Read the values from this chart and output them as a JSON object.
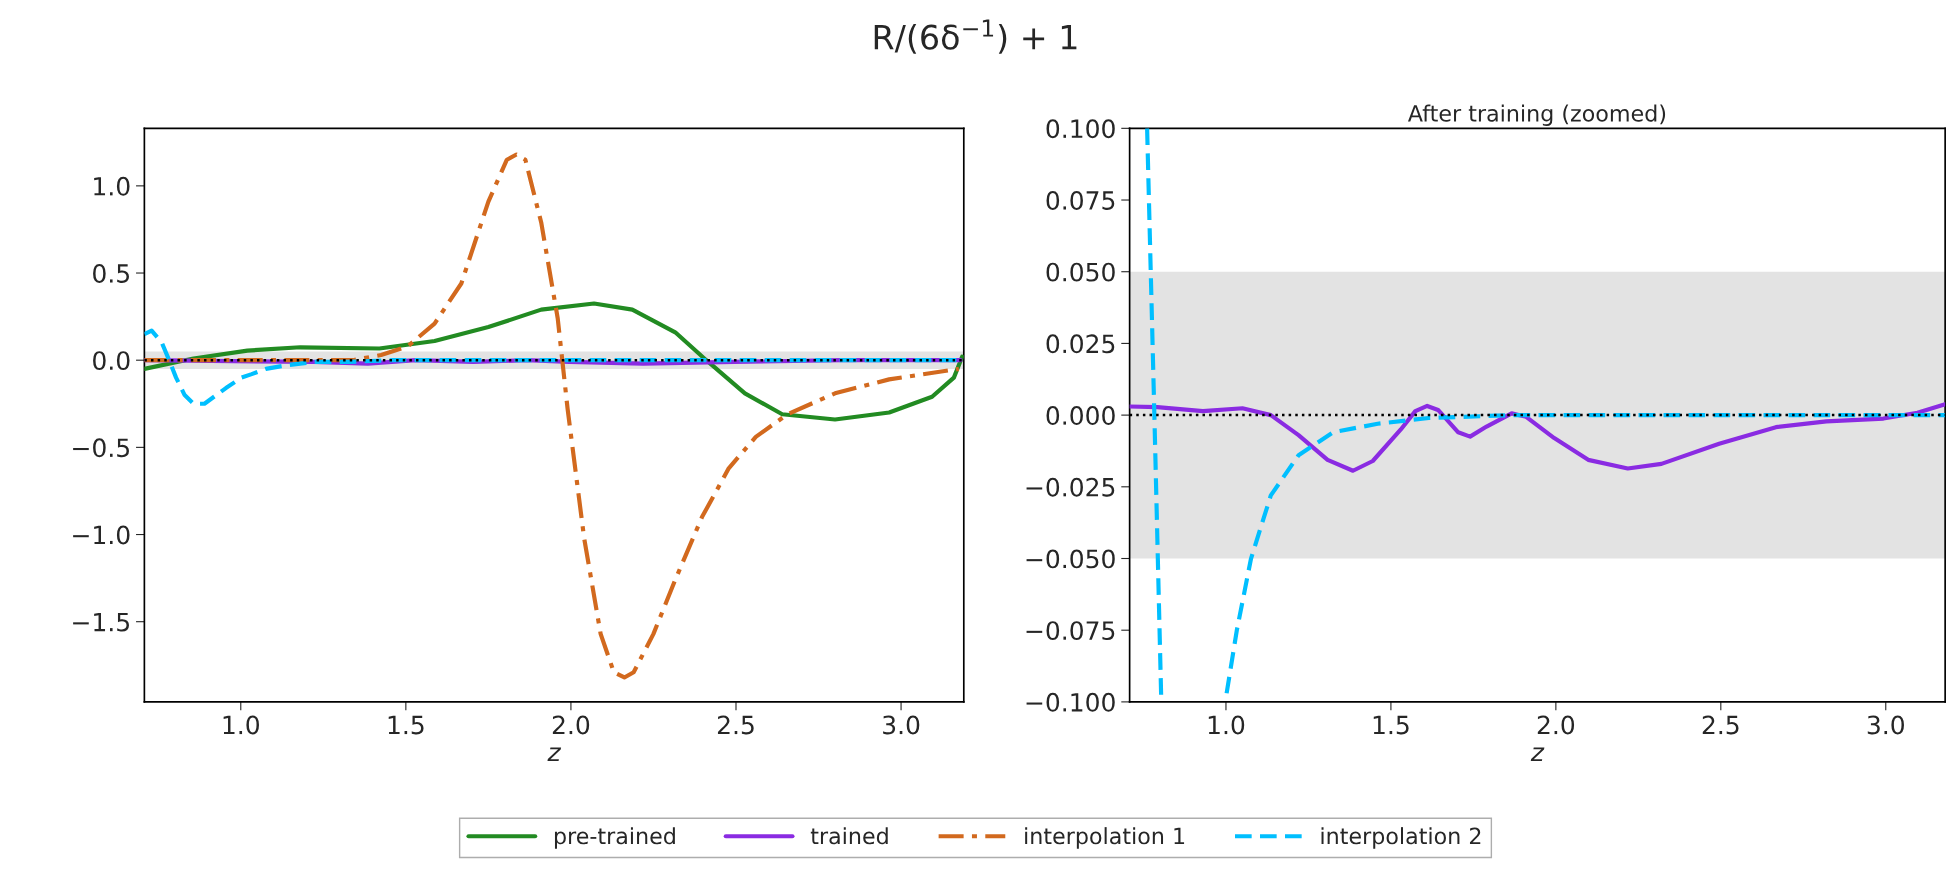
{
  "chart_data": [
    {
      "type": "line",
      "title": "R/(6δ$^{−1}$) + 1",
      "xlabel": "z",
      "xlim": [
        0.708,
        3.19
      ],
      "ylim": [
        -1.96,
        1.33
      ],
      "xticks": [
        {
          "value": 1.0,
          "label": "1.0"
        },
        {
          "value": 1.5,
          "label": "1.5"
        },
        {
          "value": 2.0,
          "label": "2.0"
        },
        {
          "value": 2.5,
          "label": "2.5"
        },
        {
          "value": 3.0,
          "label": "3.0"
        }
      ],
      "yticks": [
        {
          "value": -1.5,
          "label": "−1.5"
        },
        {
          "value": -1.0,
          "label": "−1.0"
        },
        {
          "value": -0.5,
          "label": "−0.5"
        },
        {
          "value": 0.0,
          "label": "0.0"
        },
        {
          "value": 0.5,
          "label": "0.5"
        },
        {
          "value": 1.0,
          "label": "1.0"
        }
      ],
      "grid": false,
      "legend": "bottom",
      "ref_lines": [
        {
          "axis": "y",
          "value": 0,
          "color": "#000000",
          "line_style": "dotted"
        }
      ],
      "bands": [
        {
          "axis": "y",
          "from": -0.05,
          "to": 0.05,
          "color": "#e3e3e3"
        }
      ],
      "series": [
        {
          "name": "pre-trained",
          "color": "#228b22",
          "line_style": "solid",
          "x": [
            0.708,
            0.857,
            1.02,
            1.18,
            1.42,
            1.587,
            1.75,
            1.91,
            2.07,
            2.186,
            2.316,
            2.41,
            2.527,
            2.64,
            2.8,
            2.964,
            3.094,
            3.16,
            3.185
          ],
          "values": [
            -0.05,
            0.01,
            0.055,
            0.074,
            0.067,
            0.11,
            0.19,
            0.29,
            0.325,
            0.29,
            0.16,
            0.0,
            -0.19,
            -0.31,
            -0.34,
            -0.3,
            -0.21,
            -0.1,
            0.02
          ]
        },
        {
          "name": "trained",
          "color": "#8a2be2",
          "line_style": "solid",
          "x": [
            0.708,
            1.22,
            1.385,
            1.53,
            1.704,
            1.866,
            1.995,
            2.218,
            2.495,
            2.82,
            3.18
          ],
          "values": [
            0.0,
            -0.01,
            -0.02,
            0.0,
            -0.01,
            0.0,
            -0.01,
            -0.02,
            -0.01,
            0.0,
            0.0
          ]
        },
        {
          "name": "interpolation 1",
          "color": "#d2691e",
          "line_style": "dashdot",
          "x": [
            0.708,
            1.34,
            1.425,
            1.506,
            1.587,
            1.668,
            1.75,
            1.806,
            1.835,
            1.862,
            1.91,
            1.96,
            1.99,
            2.04,
            2.09,
            2.13,
            2.162,
            2.19,
            2.25,
            2.316,
            2.397,
            2.478,
            2.56,
            2.656,
            2.8,
            2.964,
            3.175
          ],
          "values": [
            0.0,
            0.0,
            0.03,
            0.08,
            0.21,
            0.44,
            0.91,
            1.15,
            1.18,
            1.15,
            0.79,
            0.24,
            -0.28,
            -1.02,
            -1.57,
            -1.79,
            -1.82,
            -1.79,
            -1.57,
            -1.26,
            -0.9,
            -0.62,
            -0.44,
            -0.31,
            -0.19,
            -0.11,
            -0.05
          ]
        },
        {
          "name": "interpolation 2",
          "color": "#00bfff",
          "line_style": "dashed",
          "x": [
            0.708,
            0.73,
            0.761,
            0.783,
            0.804,
            0.83,
            0.857,
            0.89,
            0.955,
            1.002,
            1.033,
            1.076,
            1.136,
            1.22,
            1.325,
            1.46,
            1.615,
            1.87,
            3.18
          ],
          "values": [
            0.15,
            0.17,
            0.1,
            0.0,
            -0.1,
            -0.2,
            -0.25,
            -0.25,
            -0.16,
            -0.1,
            -0.08,
            -0.05,
            -0.03,
            -0.01,
            -0.01,
            0.0,
            0.0,
            0.0,
            0.0
          ]
        }
      ]
    },
    {
      "type": "line",
      "title": "After training (zoomed)",
      "xlabel": "z",
      "xlim": [
        0.708,
        3.18
      ],
      "ylim": [
        -0.1,
        0.1
      ],
      "xticks": [
        {
          "value": 1.0,
          "label": "1.0"
        },
        {
          "value": 1.5,
          "label": "1.5"
        },
        {
          "value": 2.0,
          "label": "2.0"
        },
        {
          "value": 2.5,
          "label": "2.5"
        },
        {
          "value": 3.0,
          "label": "3.0"
        }
      ],
      "yticks": [
        {
          "value": -0.1,
          "label": "−0.100"
        },
        {
          "value": -0.075,
          "label": "−0.075"
        },
        {
          "value": -0.05,
          "label": "−0.050"
        },
        {
          "value": -0.025,
          "label": "−0.025"
        },
        {
          "value": 0.0,
          "label": "0.000"
        },
        {
          "value": 0.025,
          "label": "0.025"
        },
        {
          "value": 0.05,
          "label": "0.050"
        },
        {
          "value": 0.075,
          "label": "0.075"
        },
        {
          "value": 0.1,
          "label": "0.100"
        }
      ],
      "grid": false,
      "ref_lines": [
        {
          "axis": "y",
          "value": 0,
          "color": "#000000",
          "line_style": "dotted"
        }
      ],
      "bands": [
        {
          "axis": "y",
          "from": -0.05,
          "to": 0.05,
          "color": "#e3e3e3"
        }
      ],
      "series": [
        {
          "color": "#8a2be2",
          "line_style": "solid",
          "x": [
            0.708,
            0.792,
            0.93,
            1.05,
            1.136,
            1.22,
            1.308,
            1.385,
            1.445,
            1.53,
            1.574,
            1.61,
            1.643,
            1.704,
            1.74,
            1.79,
            1.866,
            1.91,
            1.995,
            2.098,
            2.218,
            2.32,
            2.495,
            2.667,
            2.82,
            2.993,
            3.096,
            3.18
          ],
          "values": [
            0.003,
            0.0028,
            0.0014,
            0.0024,
            0.0,
            -0.007,
            -0.0156,
            -0.0194,
            -0.016,
            -0.005,
            0.0014,
            0.0032,
            0.0018,
            -0.006,
            -0.0075,
            -0.004,
            0.0006,
            -0.0006,
            -0.008,
            -0.0156,
            -0.0186,
            -0.017,
            -0.01,
            -0.0042,
            -0.0022,
            -0.0012,
            0.0008,
            0.0038
          ]
        },
        {
          "color": "#00bfff",
          "line_style": "dashed",
          "x": [
            0.761,
            0.783,
            0.804,
            0.9,
            1.002,
            1.033,
            1.076,
            1.136,
            1.22,
            1.325,
            1.46,
            1.615,
            1.87,
            3.18
          ],
          "values": [
            0.1,
            0.0,
            -0.1,
            null,
            -0.097,
            -0.075,
            -0.05,
            -0.028,
            -0.014,
            -0.006,
            -0.003,
            -0.001,
            0.0,
            0.0
          ]
        }
      ]
    }
  ]
}
